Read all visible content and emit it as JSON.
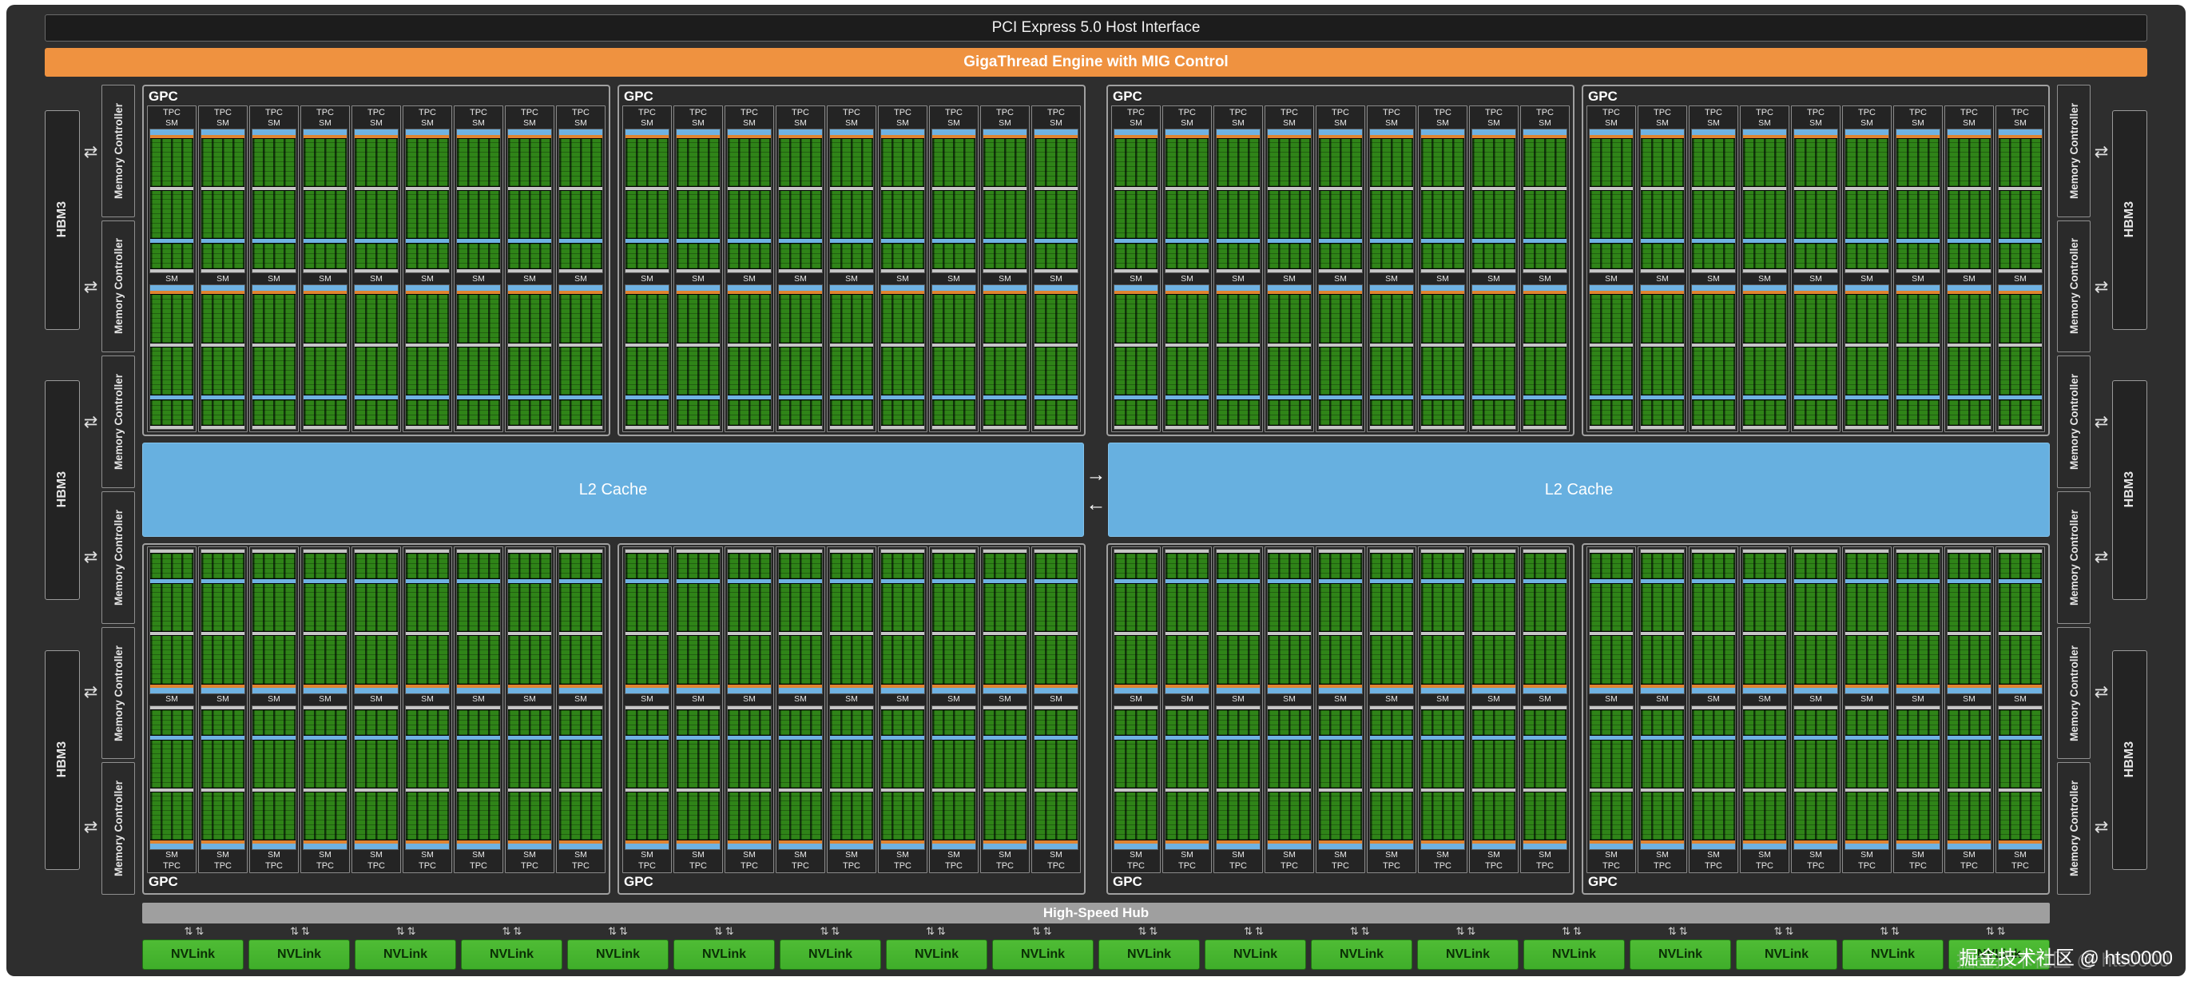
{
  "diagram": {
    "pcie_label": "PCI Express 5.0 Host Interface",
    "gigathread_label": "GigaThread Engine with MIG Control",
    "l2_label": "L2 Cache",
    "hub_label": "High-Speed Hub",
    "nvlink_label": "NVLink",
    "nvlink_count": 18,
    "hbm_label": "HBM3",
    "hbm_per_side": 3,
    "mc_label": "Memory Controller",
    "mc_per_side": 6,
    "gpc_label": "GPC",
    "gpc_top_count": 4,
    "gpc_bottom_count": 4,
    "tpc_label": "TPC",
    "tpc_per_gpc": 9,
    "sm_label": "SM",
    "sm_per_tpc": 2
  },
  "arrows": {
    "horizontal": "⇄",
    "vertical": "⇅",
    "right": "→",
    "left": "←"
  },
  "watermark": "掘金技术社区 @ hts0000",
  "colors": {
    "panel-bg": "#2e2e2e",
    "orange": "#ef9240",
    "orange2": "#e08430",
    "l2-blue": "#67b0e0",
    "strip-blue": "#6fb2e2",
    "core-green": "#2f8418",
    "nvlink-green": "#3fae2a"
  }
}
